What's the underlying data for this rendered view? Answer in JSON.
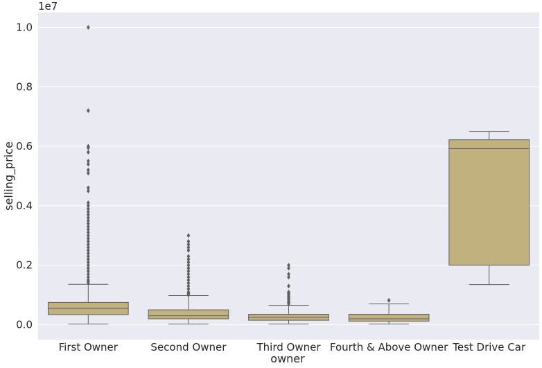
{
  "chart_data": {
    "type": "box",
    "xlabel": "owner",
    "ylabel": "selling_price",
    "offset_label": "1e7",
    "ylim": [
      -0.05,
      1.05
    ],
    "yticks": [
      0.0,
      0.2,
      0.4,
      0.6,
      0.8,
      1.0
    ],
    "ytick_labels": [
      "0.0",
      "0.2",
      "0.4",
      "0.6",
      "0.8",
      "1.0"
    ],
    "grid": true,
    "colors": {
      "background": "#eaeaf2",
      "grid": "#ffffff",
      "box_fill": "#c1b17f",
      "line": "#5e5e5e",
      "text": "#262626"
    },
    "categories": [
      "First Owner",
      "Second Owner",
      "Third Owner",
      "Fourth & Above Owner",
      "Test Drive Car"
    ],
    "boxes": [
      {
        "min": 0.002,
        "q1": 0.034,
        "median": 0.055,
        "q3": 0.075,
        "max": 0.136,
        "outliers": [
          1.0,
          0.72,
          0.6,
          0.595,
          0.58,
          0.55,
          0.54,
          0.52,
          0.51,
          0.46,
          0.45,
          0.41,
          0.4,
          0.39,
          0.38,
          0.37,
          0.36,
          0.35,
          0.34,
          0.33,
          0.32,
          0.31,
          0.3,
          0.29,
          0.28,
          0.27,
          0.26,
          0.25,
          0.24,
          0.23,
          0.22,
          0.21,
          0.2,
          0.19,
          0.18,
          0.17,
          0.16,
          0.15,
          0.145,
          0.14
        ]
      },
      {
        "min": 0.002,
        "q1": 0.02,
        "median": 0.03,
        "q3": 0.05,
        "max": 0.098,
        "outliers": [
          0.3,
          0.28,
          0.27,
          0.26,
          0.25,
          0.23,
          0.22,
          0.21,
          0.2,
          0.19,
          0.18,
          0.17,
          0.16,
          0.15,
          0.14,
          0.13,
          0.12,
          0.11,
          0.105,
          0.1
        ]
      },
      {
        "min": 0.002,
        "q1": 0.015,
        "median": 0.025,
        "q3": 0.035,
        "max": 0.065,
        "outliers": [
          0.2,
          0.19,
          0.17,
          0.16,
          0.13,
          0.11,
          0.105,
          0.1,
          0.095,
          0.09,
          0.085,
          0.08,
          0.075,
          0.07
        ]
      },
      {
        "min": 0.002,
        "q1": 0.012,
        "median": 0.02,
        "q3": 0.035,
        "max": 0.07,
        "outliers": [
          0.082
        ]
      },
      {
        "min": 0.135,
        "q1": 0.2,
        "median": 0.592,
        "q3": 0.622,
        "max": 0.65,
        "outliers": []
      }
    ]
  }
}
